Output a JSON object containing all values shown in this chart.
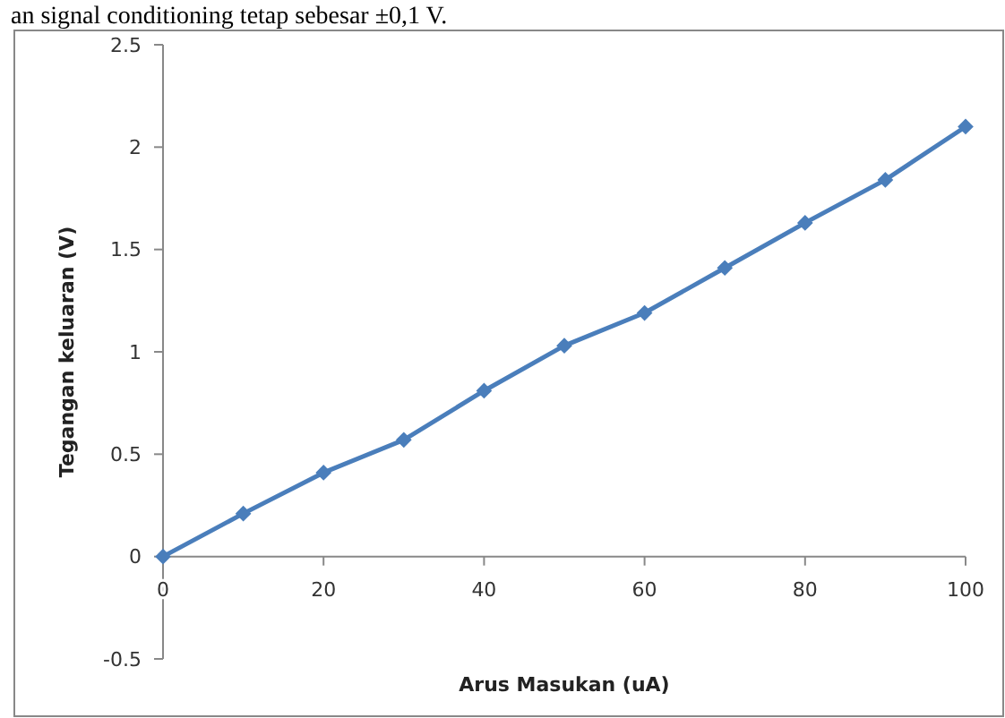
{
  "chart_data": {
    "type": "line",
    "xlabel": "Arus Masukan  (uA)",
    "ylabel": "Tegangan keluaran (V)",
    "annotations": [
      "an signal conditioning tetap sebesar ±0,1 V."
    ],
    "x": [
      0,
      10,
      20,
      30,
      40,
      50,
      60,
      70,
      80,
      90,
      100
    ],
    "series": [
      {
        "color": "#4a7ebb",
        "values": [
          0,
          0.21,
          0.41,
          0.57,
          0.81,
          1.03,
          1.19,
          1.41,
          1.63,
          1.84,
          2.1
        ]
      }
    ],
    "xlim": [
      0,
      100
    ],
    "xticks": [
      0,
      20,
      40,
      60,
      80,
      100
    ],
    "ylim": [
      -0.5,
      2.5
    ],
    "yticks": [
      -0.5,
      0,
      0.5,
      1,
      1.5,
      2,
      2.5
    ],
    "marker": "diamond",
    "line_style": "solid"
  }
}
